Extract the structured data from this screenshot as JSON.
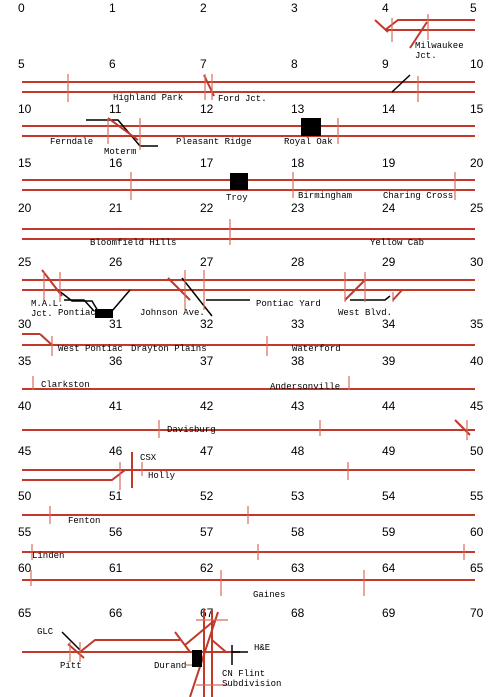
{
  "colors": {
    "track": "#c0392b",
    "tick": "#d96a5a",
    "other_railroad": "#000000",
    "background": "#ffffff"
  },
  "mileposts": [
    "0",
    "1",
    "2",
    "3",
    "4",
    "5",
    "5",
    "6",
    "7",
    "8",
    "9",
    "10",
    "10",
    "11",
    "12",
    "13",
    "14",
    "15",
    "15",
    "16",
    "17",
    "18",
    "19",
    "20",
    "20",
    "21",
    "22",
    "23",
    "24",
    "25",
    "25",
    "26",
    "27",
    "28",
    "29",
    "30",
    "30",
    "31",
    "32",
    "33",
    "34",
    "35",
    "35",
    "36",
    "37",
    "38",
    "39",
    "40",
    "40",
    "41",
    "42",
    "43",
    "44",
    "45",
    "45",
    "46",
    "47",
    "48",
    "49",
    "50",
    "50",
    "51",
    "52",
    "53",
    "54",
    "55",
    "55",
    "56",
    "57",
    "58",
    "59",
    "60",
    "60",
    "61",
    "62",
    "63",
    "64",
    "65",
    "65",
    "66",
    "67",
    "68",
    "69",
    "70"
  ],
  "stations": {
    "milwaukee": "Milwaukee\nJct.",
    "highland_park": "Highland Park",
    "ford_jct": "Ford Jct.",
    "ferndale": "Ferndale",
    "moterm": "Moterm",
    "pleasant_ridge": "Pleasant Ridge",
    "royal_oak": "Royal Oak",
    "troy": "Troy",
    "birmingham": "Birmingham",
    "charing_cross": "Charing Cross",
    "bloomfield_hills": "Bloomfield Hills",
    "yellow_cab": "Yellow Cab",
    "mal_jct": "M.A.L.\nJct.",
    "pontiac": "Pontiac",
    "johnson_ave": "Johnson Ave.",
    "pontiac_yard": "Pontiac Yard",
    "west_blvd": "West Blvd.",
    "west_pontiac": "West Pontiac",
    "drayton_plains": "Drayton Plains",
    "waterford": "Waterford",
    "clarkston": "Clarkston",
    "andersonville": "Andersonville",
    "davisburg": "Davisburg",
    "csx": "CSX",
    "holly": "Holly",
    "fenton": "Fenton",
    "linden": "Linden",
    "gaines": "Gaines",
    "glc": "GLC",
    "pitt": "Pitt",
    "durand": "Durand",
    "he": "H&E",
    "cn_flint": "CN Flint\nSubdivision"
  }
}
